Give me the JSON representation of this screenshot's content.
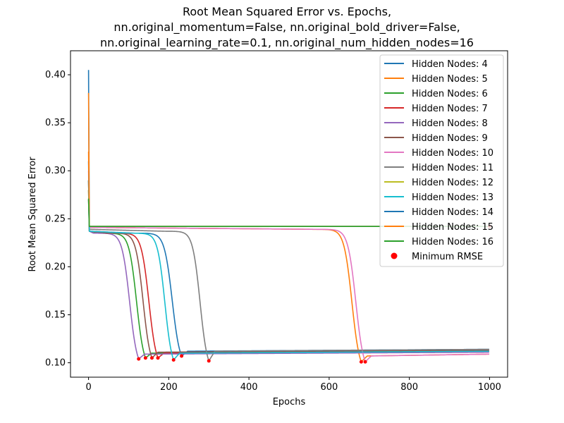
{
  "chart_data": {
    "type": "line",
    "title_lines": [
      "Root Mean Squared Error vs. Epochs,",
      "nn.original_momentum=False, nn.original_bold_driver=False,",
      "nn.original_learning_rate=0.1, nn.original_num_hidden_nodes=16"
    ],
    "xlabel": "Epochs",
    "ylabel": "Root Mean Squared Error",
    "xlim": [
      -45,
      1045
    ],
    "ylim": [
      0.085,
      0.425
    ],
    "xticks": [
      0,
      200,
      400,
      600,
      800,
      1000
    ],
    "yticks": [
      0.1,
      0.15,
      0.2,
      0.25,
      0.3,
      0.35,
      0.4
    ],
    "xtick_labels": [
      "0",
      "200",
      "400",
      "600",
      "800",
      "1000"
    ],
    "ytick_labels": [
      "0.10",
      "0.15",
      "0.20",
      "0.25",
      "0.30",
      "0.35",
      "0.40"
    ],
    "grid": false,
    "legend_position": "top-right",
    "series": [
      {
        "name": "Hidden Nodes: 4",
        "color": "#1f77b4",
        "initial_peak": 0.405,
        "start": 0.237,
        "plateau": 0.237,
        "drop_epoch": 215,
        "min_value": 0.107,
        "min_epoch": 232,
        "final": 0.114
      },
      {
        "name": "Hidden Nodes: 5",
        "color": "#ff7f0e",
        "initial_peak": 0.381,
        "start": 0.241,
        "plateau": 0.241,
        "drop_epoch": 663,
        "min_value": 0.101,
        "min_epoch": 680,
        "final": 0.109
      },
      {
        "name": "Hidden Nodes: 6",
        "color": "#2ca02c",
        "initial_peak": 0.27,
        "start": 0.237,
        "plateau": 0.237,
        "drop_epoch": 130,
        "min_value": 0.105,
        "min_epoch": 142,
        "final": 0.112
      },
      {
        "name": "Hidden Nodes: 7",
        "color": "#d62728",
        "initial_peak": 0.29,
        "start": 0.237,
        "plateau": 0.237,
        "drop_epoch": 160,
        "min_value": 0.105,
        "min_epoch": 173,
        "final": 0.112
      },
      {
        "name": "Hidden Nodes: 8",
        "color": "#9467bd",
        "initial_peak": 0.27,
        "start": 0.237,
        "plateau": 0.237,
        "drop_epoch": 112,
        "min_value": 0.104,
        "min_epoch": 125,
        "final": 0.111
      },
      {
        "name": "Hidden Nodes: 9",
        "color": "#8c564b",
        "initial_peak": 0.28,
        "start": 0.237,
        "plateau": 0.237,
        "drop_epoch": 148,
        "min_value": 0.105,
        "min_epoch": 158,
        "final": 0.113
      },
      {
        "name": "Hidden Nodes: 10",
        "color": "#e377c2",
        "initial_peak": 0.3,
        "start": 0.241,
        "plateau": 0.241,
        "drop_epoch": 672,
        "min_value": 0.101,
        "min_epoch": 690,
        "final": 0.109
      },
      {
        "name": "Hidden Nodes: 11",
        "color": "#7f7f7f",
        "initial_peak": 0.29,
        "start": 0.239,
        "plateau": 0.239,
        "drop_epoch": 290,
        "min_value": 0.102,
        "min_epoch": 300,
        "final": 0.114
      },
      {
        "name": "Hidden Nodes: 12",
        "color": "#bcbd22",
        "initial_peak": 0.28,
        "start": 0.242,
        "plateau": 0.242,
        "drop_epoch": null,
        "min_value": null,
        "min_epoch": null,
        "final": 0.242
      },
      {
        "name": "Hidden Nodes: 13",
        "color": "#17becf",
        "initial_peak": 0.29,
        "start": 0.237,
        "plateau": 0.237,
        "drop_epoch": 203,
        "min_value": 0.103,
        "min_epoch": 212,
        "final": 0.112
      },
      {
        "name": "Hidden Nodes: 14",
        "color": "#1f77b4",
        "initial_peak": 0.31,
        "start": 0.242,
        "plateau": 0.242,
        "drop_epoch": null,
        "min_value": null,
        "min_epoch": null,
        "final": 0.242
      },
      {
        "name": "Hidden Nodes: 15",
        "color": "#ff7f0e",
        "initial_peak": 0.32,
        "start": 0.242,
        "plateau": 0.242,
        "drop_epoch": null,
        "min_value": null,
        "min_epoch": null,
        "final": 0.242
      },
      {
        "name": "Hidden Nodes: 16",
        "color": "#2ca02c",
        "initial_peak": 0.271,
        "start": 0.242,
        "plateau": 0.242,
        "drop_epoch": null,
        "min_value": null,
        "min_epoch": null,
        "final": 0.242
      }
    ],
    "minimum_marker": {
      "name": "Minimum RMSE",
      "color": "#ff0000"
    }
  }
}
